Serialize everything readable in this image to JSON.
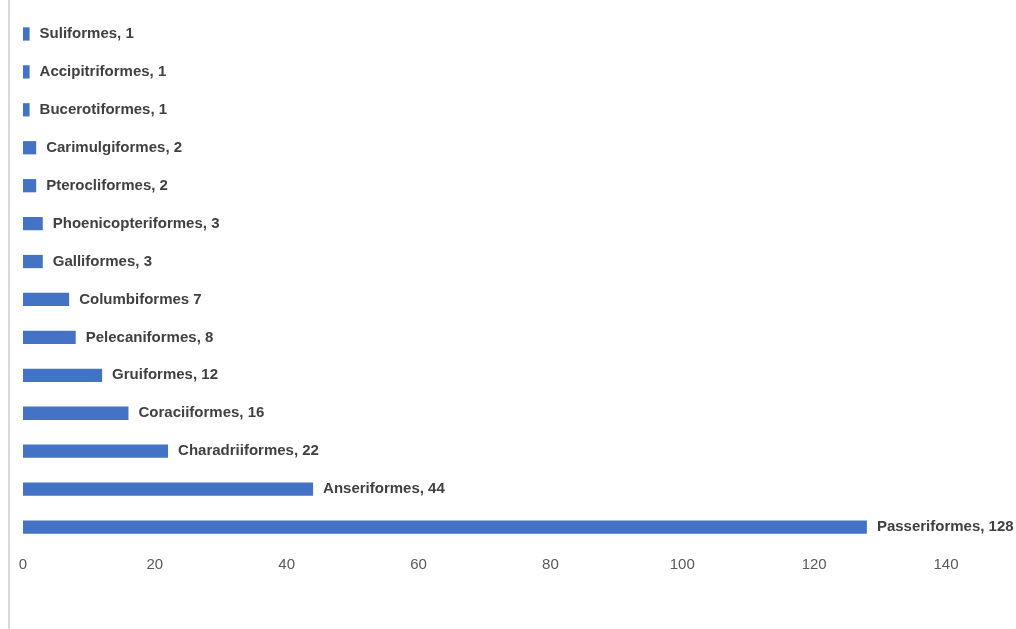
{
  "chart_data": {
    "type": "bar",
    "orientation": "horizontal",
    "categories": [
      null,
      null,
      null,
      null,
      null,
      null,
      null,
      null,
      null,
      null,
      null,
      null,
      null,
      null
    ],
    "values": [
      1,
      1,
      1,
      2,
      2,
      3,
      3,
      7,
      8,
      12,
      16,
      22,
      44,
      128
    ],
    "color": "#4472c4",
    "xlim": [
      0,
      140
    ],
    "xticks": [
      0,
      20,
      40,
      60,
      80,
      100,
      120,
      140
    ],
    "value_labels": [
      "Suliformes, 1",
      "Accipitriformes, 1",
      "Bucerotiformes, 1",
      "Carimulgiformes, 2",
      "Pterocliformes, 2",
      "Phoenicopteriformes, 3",
      "Galliformes, 3",
      "Columbiformes 7",
      "Pelecaniformes, 8",
      "Gruiformes, 12",
      "Coraciiformes, 16",
      "Charadriiformes, 22",
      "Anseriformes, 44",
      "Passeriformes, 128"
    ],
    "grid": false,
    "legend": false,
    "tick_labels": "x"
  }
}
